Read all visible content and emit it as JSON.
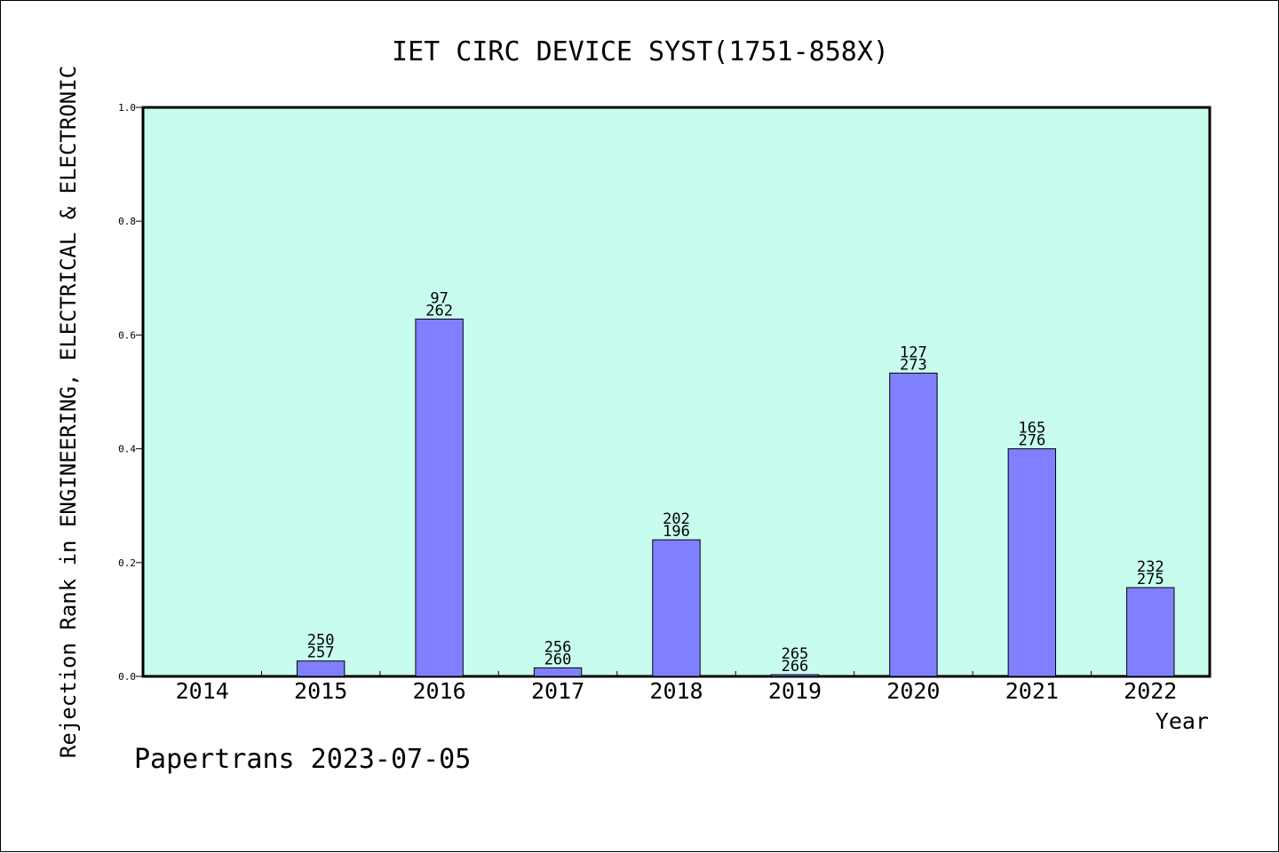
{
  "chart_data": {
    "type": "bar",
    "title": "IET CIRC DEVICE SYST(1751-858X)",
    "xlabel": "Year",
    "ylabel": "Rejection Rank in ENGINEERING, ELECTRICAL & ELECTRONIC",
    "ylim": [
      0,
      1.0
    ],
    "yticks": [
      "0.0",
      "0.2",
      "0.4",
      "0.6",
      "0.8",
      "1.0"
    ],
    "categories": [
      "2014",
      "2015",
      "2016",
      "2017",
      "2018",
      "2019",
      "2020",
      "2021",
      "2022"
    ],
    "values": [
      null,
      0.027,
      0.628,
      0.015,
      0.24,
      0.003,
      0.533,
      0.4,
      0.156
    ],
    "labels": [
      null,
      [
        "250",
        "257"
      ],
      [
        "97",
        "262"
      ],
      [
        "256",
        "260"
      ],
      [
        "202",
        "196"
      ],
      [
        "265",
        "266"
      ],
      [
        "127",
        "273"
      ],
      [
        "165",
        "276"
      ],
      [
        "232",
        "275"
      ]
    ],
    "grid": false,
    "colors": {
      "plot_background": "#c8fcee",
      "bar_fill": "#8080ff",
      "bar_stroke": "#000000"
    }
  },
  "footer": {
    "credit": "Papertrans 2023-07-05"
  }
}
